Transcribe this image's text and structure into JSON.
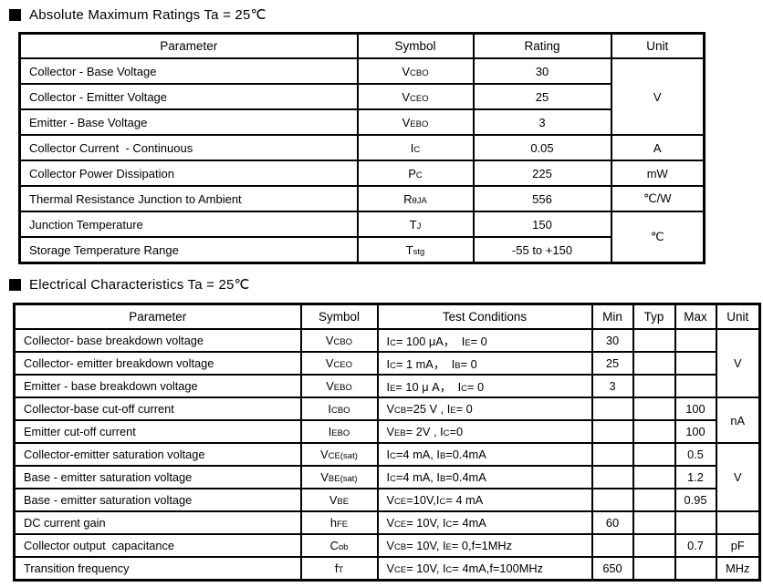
{
  "page": {
    "background": "#ffffff",
    "text_color": "#000000",
    "border_color": "#000000",
    "bullet_icon": "black-square"
  },
  "section1": {
    "title": "Absolute Maximum Ratings Ta = 25℃",
    "headers": [
      "Parameter",
      "Symbol",
      "Rating",
      "Unit"
    ],
    "rows": [
      {
        "param": "Collector - Base Voltage",
        "symbol": "V{CBO}",
        "rating": "30",
        "unit": "V",
        "unit_rowspan": 3
      },
      {
        "param": "Collector - Emitter Voltage",
        "symbol": "V{CEO}",
        "rating": "25"
      },
      {
        "param": "Emitter - Base Voltage",
        "symbol": "V{EBO}",
        "rating": "3"
      },
      {
        "param": "Collector Current  - Continuous",
        "symbol": "I{C}",
        "rating": "0.05",
        "unit": "A",
        "unit_rowspan": 1
      },
      {
        "param": "Collector Power Dissipation",
        "symbol": "P{C}",
        "rating": "225",
        "unit": "mW",
        "unit_rowspan": 1
      },
      {
        "param": "Thermal Resistance Junction to Ambient",
        "symbol": "R{θJA}",
        "rating": "556",
        "unit": "℃/W",
        "unit_rowspan": 1
      },
      {
        "param": "Junction Temperature",
        "symbol": "T{J}",
        "rating": "150",
        "unit": "℃",
        "unit_rowspan": 2
      },
      {
        "param": "Storage Temperature Range",
        "symbol": "T{stg}",
        "rating": "-55 to +150"
      }
    ]
  },
  "section2": {
    "title": "Electrical Characteristics Ta = 25℃",
    "headers": [
      "Parameter",
      "Symbol",
      "Test Conditions",
      "Min",
      "Typ",
      "Max",
      "Unit"
    ],
    "rows": [
      {
        "param": "Collector- base breakdown voltage",
        "symbol": "V{CBO}",
        "cond": "I{C}= 100 μA，  I{E}= 0",
        "min": "30",
        "typ": "",
        "max": "",
        "unit": "V",
        "unit_rowspan": 3
      },
      {
        "param": "Collector- emitter breakdown voltage",
        "symbol": "V{CEO}",
        "cond": "I{C}= 1 mA，  I{B}= 0",
        "min": "25",
        "typ": "",
        "max": ""
      },
      {
        "param": "Emitter - base breakdown voltage",
        "symbol": "V{EBO}",
        "cond": "I{E}= 10 μ A，  I{C}= 0",
        "min": "3",
        "typ": "",
        "max": ""
      },
      {
        "param": "Collector-base cut-off current",
        "symbol": "I{CBO}",
        "cond": "V{CB}=25 V , I{E}= 0",
        "min": "",
        "typ": "",
        "max": "100",
        "unit": "nA",
        "unit_rowspan": 2
      },
      {
        "param": "Emitter cut-off current",
        "symbol": "I{EBO}",
        "cond": "V{EB}= 2V , I{C}=0",
        "min": "",
        "typ": "",
        "max": "100"
      },
      {
        "param": "Collector-emitter saturation voltage",
        "symbol": "V{CE(sat)}",
        "cond": "I{C}=4 mA, I{B}=0.4mA",
        "min": "",
        "typ": "",
        "max": "0.5",
        "unit": "V",
        "unit_rowspan": 3
      },
      {
        "param": "Base - emitter saturation voltage",
        "symbol": "V{BE(sat)}",
        "cond": "I{C}=4 mA, I{B}=0.4mA",
        "min": "",
        "typ": "",
        "max": "1.2"
      },
      {
        "param": "Base - emitter saturation voltage",
        "symbol": "V{BE}",
        "cond": "V{CE}=10V,I{C}= 4 mA",
        "min": "",
        "typ": "",
        "max": "0.95"
      },
      {
        "param": "DC current gain",
        "symbol": "h{FE}",
        "cond": "V{CE}= 10V, I{C}= 4mA",
        "min": "60",
        "typ": "",
        "max": "",
        "unit": "",
        "unit_rowspan": 1
      },
      {
        "param": "Collector output  capacitance",
        "symbol": "C{ob}",
        "cond": "V{CB}= 10V, I{E}= 0,f=1MHz",
        "min": "",
        "typ": "",
        "max": "0.7",
        "unit": "pF",
        "unit_rowspan": 1
      },
      {
        "param": "Transition frequency",
        "symbol": "f{T}",
        "cond": "V{CE}= 10V, I{C}= 4mA,f=100MHz",
        "min": "650",
        "typ": "",
        "max": "",
        "unit": "MHz",
        "unit_rowspan": 1
      }
    ]
  }
}
